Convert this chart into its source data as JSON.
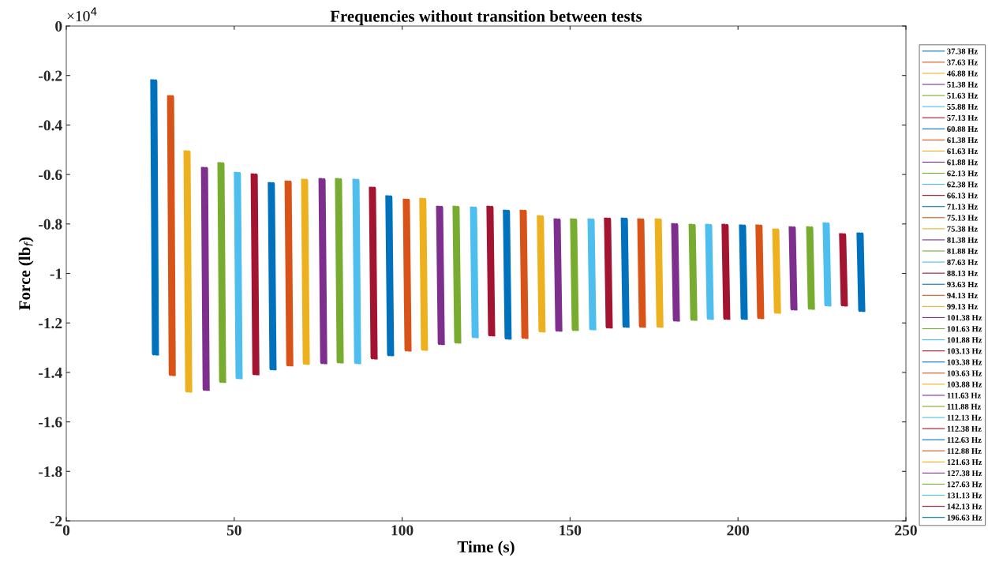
{
  "chart_data": {
    "type": "line",
    "title": "Frequencies without transition between tests",
    "xlabel": "Time (s)",
    "ylabel": "Force (lb$_{f}$)",
    "annotations": [
      "×10$^{4}$"
    ],
    "xlim": [
      0,
      250
    ],
    "xticks": [
      0,
      50,
      100,
      150,
      200,
      250
    ],
    "ylim": [
      -2,
      0
    ],
    "yticks": [
      -2,
      -1.8,
      -1.6,
      -1.4,
      -1.2,
      -1,
      -0.8,
      -0.6,
      -0.4,
      -0.2,
      0
    ],
    "grid": false,
    "legend": "right",
    "marker": "none",
    "line_style": "solid",
    "series": [
      {
        "name": "37.38 Hz",
        "color": "#0072bd",
        "x": [
          25.55,
          26.05,
          26.55,
          27.05
        ],
        "values": [
          -0.223,
          -1.324,
          -0.223,
          -1.324
        ]
      },
      {
        "name": "37.63 Hz",
        "color": "#d95319",
        "x": [
          30.55,
          31.05,
          31.55,
          32.05
        ],
        "values": [
          -0.287,
          -1.407,
          -0.287,
          -1.407
        ]
      },
      {
        "name": "46.88 Hz",
        "color": "#edb120",
        "x": [
          35.45,
          35.95,
          36.45,
          36.95
        ],
        "values": [
          -0.51,
          -1.474,
          -0.51,
          -1.474
        ]
      },
      {
        "name": "51.38 Hz",
        "color": "#7e2f8e",
        "x": [
          40.65,
          41.15,
          41.65,
          42.15
        ],
        "values": [
          -0.577,
          -1.467,
          -0.577,
          -1.467
        ]
      },
      {
        "name": "51.63 Hz",
        "color": "#77ac30",
        "x": [
          45.55,
          46.05,
          46.55,
          47.05
        ],
        "values": [
          -0.558,
          -1.435,
          -0.558,
          -1.435
        ]
      },
      {
        "name": "55.88 Hz",
        "color": "#4dbeee",
        "x": [
          50.45,
          50.95,
          51.45,
          51.95
        ],
        "values": [
          -0.597,
          -1.42,
          -0.597,
          -1.42
        ]
      },
      {
        "name": "57.13 Hz",
        "color": "#a2142f",
        "x": [
          55.45,
          55.95,
          56.45,
          56.95
        ],
        "values": [
          -0.603,
          -1.404,
          -0.603,
          -1.404
        ]
      },
      {
        "name": "60.88 Hz",
        "color": "#0072bd",
        "x": [
          60.55,
          61.05,
          61.55,
          62.05
        ],
        "values": [
          -0.638,
          -1.384,
          -0.638,
          -1.384
        ]
      },
      {
        "name": "61.38 Hz",
        "color": "#d95319",
        "x": [
          65.55,
          66.05,
          66.55,
          67.05
        ],
        "values": [
          -0.632,
          -1.368,
          -0.632,
          -1.368
        ]
      },
      {
        "name": "61.63 Hz",
        "color": "#edb120",
        "x": [
          70.45,
          70.95,
          71.45,
          71.95
        ],
        "values": [
          -0.625,
          -1.362,
          -0.625,
          -1.362
        ]
      },
      {
        "name": "61.88 Hz",
        "color": "#7e2f8e",
        "x": [
          75.65,
          76.15,
          76.65,
          77.15
        ],
        "values": [
          -0.622,
          -1.359,
          -0.622,
          -1.359
        ]
      },
      {
        "name": "62.13 Hz",
        "color": "#77ac30",
        "x": [
          80.55,
          81.05,
          81.55,
          82.05
        ],
        "values": [
          -0.622,
          -1.356,
          -0.622,
          -1.356
        ]
      },
      {
        "name": "62.38 Hz",
        "color": "#4dbeee",
        "x": [
          85.75,
          86.25,
          86.75,
          87.25
        ],
        "values": [
          -0.625,
          -1.359,
          -0.625,
          -1.359
        ]
      },
      {
        "name": "66.13 Hz",
        "color": "#a2142f",
        "x": [
          90.65,
          91.15,
          91.65,
          92.15
        ],
        "values": [
          -0.657,
          -1.34,
          -0.657,
          -1.34
        ]
      },
      {
        "name": "71.13 Hz",
        "color": "#0072bd",
        "x": [
          95.55,
          96.05,
          96.55,
          97.05
        ],
        "values": [
          -0.692,
          -1.327,
          -0.692,
          -1.327
        ]
      },
      {
        "name": "75.13 Hz",
        "color": "#d95319",
        "x": [
          100.75,
          101.25,
          101.75,
          102.25
        ],
        "values": [
          -0.705,
          -1.308,
          -0.705,
          -1.308
        ]
      },
      {
        "name": "75.38 Hz",
        "color": "#edb120",
        "x": [
          105.65,
          106.15,
          106.65,
          107.15
        ],
        "values": [
          -0.702,
          -1.305,
          -0.702,
          -1.305
        ]
      },
      {
        "name": "81.38 Hz",
        "color": "#7e2f8e",
        "x": [
          110.65,
          111.15,
          111.65,
          112.15
        ],
        "values": [
          -0.734,
          -1.282,
          -0.734,
          -1.282
        ]
      },
      {
        "name": "81.88 Hz",
        "color": "#77ac30",
        "x": [
          115.55,
          116.05,
          116.55,
          117.05
        ],
        "values": [
          -0.734,
          -1.276,
          -0.734,
          -1.276
        ]
      },
      {
        "name": "87.63 Hz",
        "color": "#4dbeee",
        "x": [
          120.75,
          121.25,
          121.75,
          122.25
        ],
        "values": [
          -0.737,
          -1.254,
          -0.737,
          -1.254
        ]
      },
      {
        "name": "88.13 Hz",
        "color": "#a2142f",
        "x": [
          125.65,
          126.15,
          126.65,
          127.15
        ],
        "values": [
          -0.734,
          -1.247,
          -0.734,
          -1.247
        ]
      },
      {
        "name": "93.63 Hz",
        "color": "#0072bd",
        "x": [
          130.55,
          131.05,
          131.55,
          132.05
        ],
        "values": [
          -0.75,
          -1.26,
          -0.75,
          -1.26
        ]
      },
      {
        "name": "94.13 Hz",
        "color": "#d95319",
        "x": [
          135.55,
          136.05,
          136.55,
          137.05
        ],
        "values": [
          -0.75,
          -1.257,
          -0.75,
          -1.257
        ]
      },
      {
        "name": "99.13 Hz",
        "color": "#edb120",
        "x": [
          140.65,
          141.15,
          141.65,
          142.15
        ],
        "values": [
          -0.772,
          -1.231,
          -0.772,
          -1.231
        ]
      },
      {
        "name": "101.38 Hz",
        "color": "#7e2f8e",
        "x": [
          145.65,
          146.15,
          146.65,
          147.15
        ],
        "values": [
          -0.785,
          -1.228,
          -0.785,
          -1.228
        ]
      },
      {
        "name": "101.63 Hz",
        "color": "#77ac30",
        "x": [
          150.55,
          151.05,
          151.55,
          152.05
        ],
        "values": [
          -0.785,
          -1.225,
          -0.785,
          -1.225
        ]
      },
      {
        "name": "101.88 Hz",
        "color": "#4dbeee",
        "x": [
          155.75,
          156.25,
          156.75,
          157.25
        ],
        "values": [
          -0.785,
          -1.222,
          -0.785,
          -1.222
        ]
      },
      {
        "name": "103.13 Hz",
        "color": "#a2142f",
        "x": [
          160.65,
          161.15,
          161.65,
          162.15
        ],
        "values": [
          -0.782,
          -1.215,
          -0.782,
          -1.215
        ]
      },
      {
        "name": "103.38 Hz",
        "color": "#0072bd",
        "x": [
          165.65,
          166.15,
          166.65,
          167.15
        ],
        "values": [
          -0.782,
          -1.212,
          -0.782,
          -1.212
        ]
      },
      {
        "name": "103.63 Hz",
        "color": "#d95319",
        "x": [
          170.55,
          171.05,
          171.55,
          172.05
        ],
        "values": [
          -0.785,
          -1.212,
          -0.785,
          -1.212
        ]
      },
      {
        "name": "103.88 Hz",
        "color": "#edb120",
        "x": [
          175.75,
          176.25,
          176.75,
          177.25
        ],
        "values": [
          -0.785,
          -1.212,
          -0.785,
          -1.212
        ]
      },
      {
        "name": "111.63 Hz",
        "color": "#7e2f8e",
        "x": [
          180.65,
          181.15,
          181.65,
          182.15
        ],
        "values": [
          -0.804,
          -1.187,
          -0.804,
          -1.187
        ]
      },
      {
        "name": "111.88 Hz",
        "color": "#77ac30",
        "x": [
          185.85,
          186.35,
          186.85,
          187.35
        ],
        "values": [
          -0.807,
          -1.184,
          -0.807,
          -1.184
        ]
      },
      {
        "name": "112.13 Hz",
        "color": "#4dbeee",
        "x": [
          190.75,
          191.25,
          191.75,
          192.25
        ],
        "values": [
          -0.807,
          -1.18,
          -0.807,
          -1.18
        ]
      },
      {
        "name": "112.38 Hz",
        "color": "#a2142f",
        "x": [
          195.65,
          196.15,
          196.65,
          197.15
        ],
        "values": [
          -0.807,
          -1.18,
          -0.807,
          -1.18
        ]
      },
      {
        "name": "112.63 Hz",
        "color": "#0072bd",
        "x": [
          200.85,
          201.35,
          201.85,
          202.35
        ],
        "values": [
          -0.81,
          -1.18,
          -0.81,
          -1.18
        ]
      },
      {
        "name": "112.88 Hz",
        "color": "#d95319",
        "x": [
          205.75,
          206.25,
          206.75,
          207.25
        ],
        "values": [
          -0.81,
          -1.177,
          -0.81,
          -1.177
        ]
      },
      {
        "name": "121.63 Hz",
        "color": "#edb120",
        "x": [
          210.75,
          211.25,
          211.75,
          212.25
        ],
        "values": [
          -0.826,
          -1.155,
          -0.826,
          -1.155
        ]
      },
      {
        "name": "127.38 Hz",
        "color": "#7e2f8e",
        "x": [
          215.65,
          216.15,
          216.65,
          217.15
        ],
        "values": [
          -0.817,
          -1.142,
          -0.817,
          -1.142
        ]
      },
      {
        "name": "127.63 Hz",
        "color": "#77ac30",
        "x": [
          220.85,
          221.35,
          221.85,
          222.35
        ],
        "values": [
          -0.817,
          -1.139,
          -0.817,
          -1.139
        ]
      },
      {
        "name": "131.13 Hz",
        "color": "#4dbeee",
        "x": [
          225.75,
          226.25,
          226.75,
          227.25
        ],
        "values": [
          -0.801,
          -1.126,
          -0.801,
          -1.126
        ]
      },
      {
        "name": "142.13 Hz",
        "color": "#a2142f",
        "x": [
          230.65,
          231.15,
          231.65,
          232.15
        ],
        "values": [
          -0.845,
          -1.126,
          -0.845,
          -1.126
        ]
      },
      {
        "name": "196.63 Hz",
        "color": "#0072bd",
        "x": [
          235.85,
          236.35,
          236.85,
          237.35
        ],
        "values": [
          -0.842,
          -1.148,
          -0.842,
          -1.148
        ]
      }
    ]
  }
}
